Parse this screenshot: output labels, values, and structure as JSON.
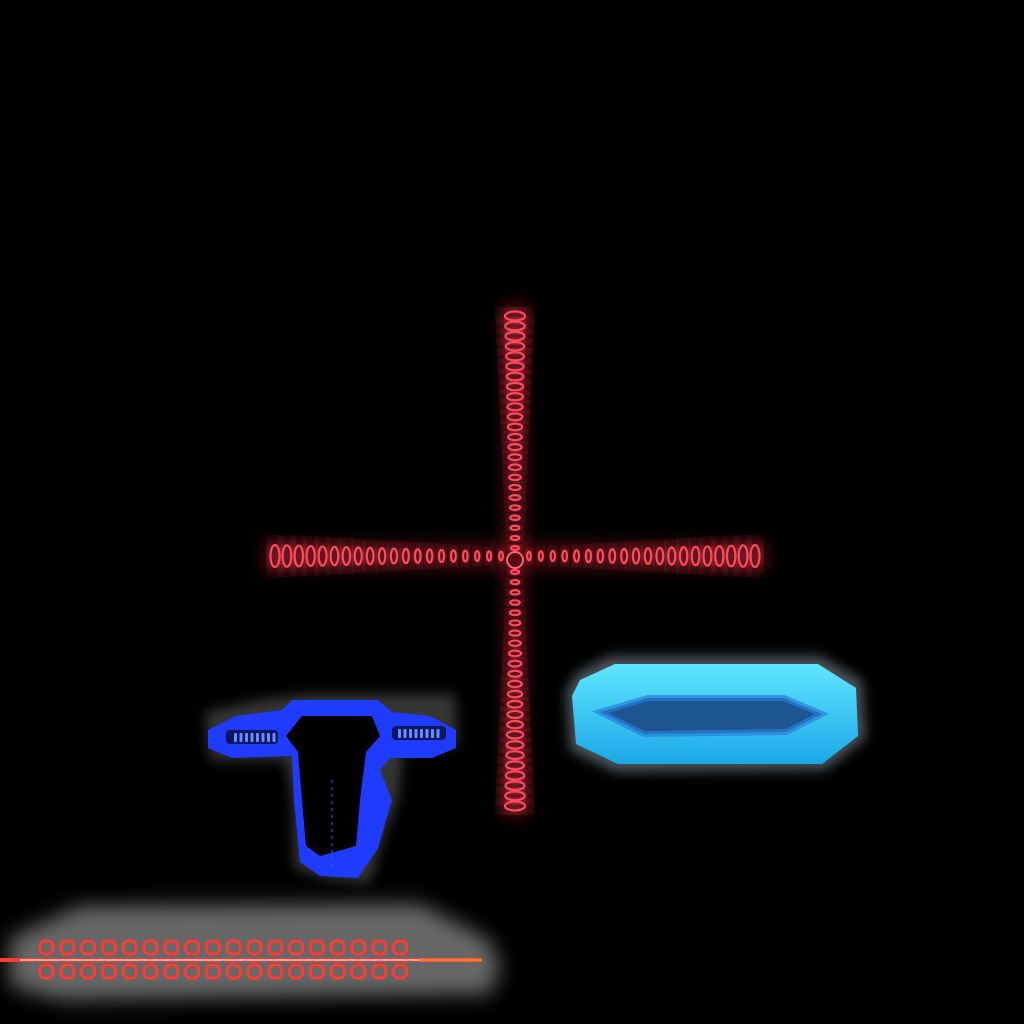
{
  "sheet": {
    "background": "#000000",
    "sprites": [
      {
        "name": "red-crosshair-sprite",
        "color": "#ff4a5c",
        "glow": "#ff2a3a"
      },
      {
        "name": "cyan-ring-sprite",
        "color": "#39d8ff",
        "inner": "#1b4f8a"
      },
      {
        "name": "blue-ship-sprite",
        "color": "#1f3bff",
        "accent": "#6a8cff"
      },
      {
        "name": "red-laser-bar-sprite",
        "color": "#ff3a30",
        "beam": "#ffd6d0",
        "haze": "#8a8a8a"
      }
    ]
  }
}
